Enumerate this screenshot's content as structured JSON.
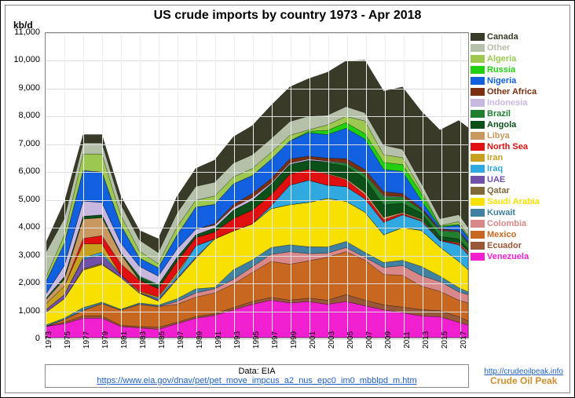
{
  "chart": {
    "type": "stacked-area",
    "title": "US crude imports by country 1973 - Apr 2018",
    "ylabel": "kb/d",
    "ylim": [
      0,
      11000
    ],
    "ytick_step": 1000,
    "yticks": [
      "0",
      "1,000",
      "2,000",
      "3,000",
      "4,000",
      "5,000",
      "6,000",
      "7,000",
      "8,000",
      "9,000",
      "10,000",
      "11,000"
    ],
    "xyears": [
      1973,
      1975,
      1977,
      1979,
      1981,
      1983,
      1985,
      1987,
      1989,
      1991,
      1993,
      1995,
      1997,
      1999,
      2001,
      2003,
      2005,
      2007,
      2009,
      2011,
      2013,
      2015,
      2017
    ],
    "xmin": 1973,
    "xmax": 2018,
    "background_color": "#ffffff",
    "grid_color": "#dddddd",
    "title_fontsize": 16,
    "label_fontsize": 12,
    "series_order": [
      "Venezuela",
      "Ecuador",
      "Mexico",
      "Colombia",
      "Kuwait",
      "Saudi Arabia",
      "Qatar",
      "UAE",
      "Iraq",
      "Iran",
      "North Sea",
      "Libya",
      "Angola",
      "Brazil",
      "Indonesia",
      "Other Africa",
      "Nigeria",
      "Russia",
      "Algeria",
      "Other",
      "Canada"
    ],
    "legend_order": [
      "Canada",
      "Other",
      "Algeria",
      "Russia",
      "Nigeria",
      "Other Africa",
      "Indonesia",
      "Brazil",
      "Angola",
      "Libya",
      "North Sea",
      "Iran",
      "Iraq",
      "UAE",
      "Qatar",
      "Saudi Arabia",
      "Kuwait",
      "Colombia",
      "Mexico",
      "Ecuador",
      "Venezuela"
    ],
    "colors": {
      "Canada": "#3a3a28",
      "Other": "#b5c0a8",
      "Algeria": "#9cc850",
      "Russia": "#20d010",
      "Nigeria": "#1060e0",
      "Other Africa": "#7a3010",
      "Indonesia": "#c8b8e0",
      "Brazil": "#208030",
      "Angola": "#0a5018",
      "Libya": "#c89860",
      "North Sea": "#e01010",
      "Iran": "#c8a020",
      "Iraq": "#30a8e0",
      "UAE": "#7050a8",
      "Qatar": "#806838",
      "Saudi Arabia": "#f8e000",
      "Kuwait": "#4080a0",
      "Colombia": "#d88888",
      "Mexico": "#c86820",
      "Ecuador": "#985838",
      "Venezuela": "#f020d0"
    },
    "sample_years": [
      1973,
      1975,
      1977,
      1979,
      1981,
      1983,
      1985,
      1987,
      1989,
      1991,
      1993,
      1995,
      1997,
      1999,
      2001,
      2003,
      2005,
      2007,
      2009,
      2011,
      2013,
      2015,
      2017,
      2018
    ],
    "series": {
      "Venezuela": [
        400,
        500,
        700,
        700,
        400,
        350,
        300,
        500,
        700,
        800,
        1000,
        1200,
        1350,
        1250,
        1300,
        1200,
        1300,
        1150,
        1000,
        900,
        780,
        750,
        550,
        450
      ],
      "Ecuador": [
        0,
        50,
        80,
        80,
        40,
        50,
        70,
        50,
        60,
        60,
        80,
        100,
        100,
        100,
        120,
        150,
        250,
        200,
        180,
        200,
        230,
        220,
        200,
        150
      ],
      "Mexico": [
        0,
        100,
        200,
        450,
        550,
        800,
        750,
        650,
        700,
        750,
        850,
        1050,
        1300,
        1300,
        1350,
        1550,
        1550,
        1450,
        1100,
        1150,
        850,
        700,
        600,
        650
      ],
      "Colombia": [
        0,
        0,
        0,
        0,
        0,
        0,
        0,
        100,
        150,
        150,
        170,
        200,
        250,
        450,
        260,
        150,
        150,
        100,
        250,
        350,
        380,
        350,
        300,
        300
      ],
      "Kuwait": [
        50,
        50,
        100,
        50,
        30,
        50,
        50,
        100,
        150,
        50,
        350,
        250,
        250,
        250,
        250,
        220,
        220,
        180,
        180,
        190,
        330,
        200,
        150,
        100
      ],
      "Saudi Arabia": [
        450,
        700,
        1350,
        1350,
        1150,
        350,
        150,
        700,
        1100,
        1750,
        1400,
        1300,
        1400,
        1450,
        1600,
        1750,
        1450,
        1450,
        1000,
        1180,
        1300,
        1050,
        950,
        800
      ],
      "Qatar": [
        0,
        0,
        50,
        50,
        0,
        0,
        0,
        0,
        0,
        0,
        0,
        0,
        0,
        0,
        0,
        0,
        0,
        0,
        0,
        0,
        0,
        0,
        0,
        0
      ],
      "UAE": [
        100,
        150,
        350,
        300,
        100,
        20,
        50,
        50,
        50,
        0,
        0,
        0,
        0,
        0,
        0,
        0,
        0,
        0,
        0,
        0,
        0,
        0,
        0,
        0
      ],
      "Iraq": [
        0,
        0,
        50,
        100,
        0,
        0,
        50,
        100,
        400,
        0,
        0,
        0,
        100,
        700,
        800,
        480,
        530,
        480,
        450,
        460,
        340,
        230,
        600,
        550
      ],
      "Iran": [
        200,
        300,
        500,
        300,
        0,
        50,
        50,
        100,
        0,
        0,
        0,
        0,
        0,
        0,
        0,
        0,
        0,
        0,
        0,
        0,
        0,
        0,
        0,
        0
      ],
      "North Sea": [
        0,
        0,
        200,
        300,
        400,
        400,
        300,
        400,
        300,
        250,
        450,
        500,
        400,
        400,
        400,
        400,
        250,
        150,
        100,
        50,
        30,
        20,
        50,
        50
      ],
      "Libya": [
        150,
        250,
        700,
        650,
        350,
        0,
        0,
        0,
        0,
        0,
        0,
        0,
        0,
        0,
        0,
        30,
        40,
        90,
        80,
        40,
        40,
        5,
        30,
        50
      ],
      "Angola": [
        50,
        100,
        100,
        100,
        50,
        100,
        100,
        150,
        100,
        150,
        300,
        350,
        380,
        350,
        320,
        370,
        450,
        500,
        450,
        330,
        220,
        130,
        130,
        100
      ],
      "Brazil": [
        0,
        0,
        0,
        0,
        0,
        50,
        50,
        0,
        0,
        0,
        0,
        0,
        0,
        0,
        0,
        50,
        100,
        150,
        300,
        230,
        120,
        200,
        250,
        200
      ],
      "Indonesia": [
        150,
        400,
        550,
        450,
        350,
        350,
        300,
        300,
        200,
        100,
        100,
        100,
        50,
        50,
        50,
        30,
        20,
        20,
        30,
        20,
        10,
        20,
        20,
        20
      ],
      "Other Africa": [
        0,
        0,
        0,
        0,
        0,
        0,
        0,
        0,
        0,
        50,
        100,
        150,
        150,
        150,
        100,
        100,
        150,
        150,
        150,
        100,
        60,
        50,
        30,
        30
      ],
      "Nigeria": [
        450,
        800,
        1100,
        1100,
        650,
        300,
        300,
        500,
        800,
        700,
        750,
        650,
        700,
        650,
        850,
        850,
        1100,
        1100,
        800,
        800,
        270,
        60,
        200,
        150
      ],
      "Russia": [
        0,
        0,
        0,
        0,
        0,
        0,
        0,
        0,
        0,
        0,
        0,
        0,
        0,
        0,
        50,
        150,
        200,
        200,
        250,
        250,
        250,
        40,
        30,
        30
      ],
      "Algeria": [
        150,
        300,
        600,
        650,
        350,
        250,
        150,
        300,
        250,
        300,
        250,
        250,
        250,
        200,
        50,
        200,
        230,
        450,
        280,
        250,
        120,
        20,
        100,
        50
      ],
      "Other": [
        900,
        600,
        400,
        400,
        400,
        400,
        400,
        500,
        500,
        500,
        500,
        500,
        500,
        500,
        500,
        350,
        350,
        300,
        350,
        300,
        250,
        250,
        250,
        300
      ],
      "Canada": [
        350,
        600,
        300,
        300,
        300,
        350,
        500,
        600,
        650,
        800,
        950,
        1050,
        1200,
        1250,
        1350,
        1550,
        1650,
        1900,
        1950,
        2250,
        2600,
        3200,
        3400,
        3600
      ]
    }
  },
  "footer": {
    "label": "Data: EIA",
    "url": "https://www.eia.gov/dnav/pet/pet_move_impcus_a2_nus_epc0_im0_mbblpd_m.htm"
  },
  "credit": {
    "url": "http://crudeoilpeak.info",
    "name": "Crude Oil Peak"
  }
}
